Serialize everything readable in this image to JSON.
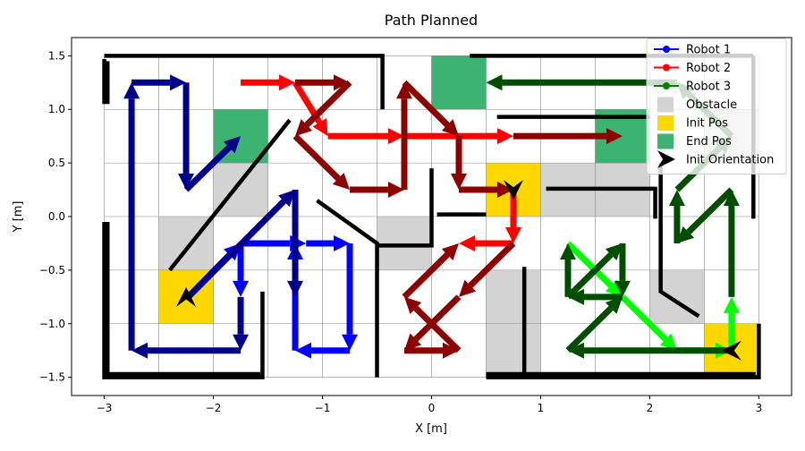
{
  "chart_data": {
    "type": "line",
    "title": "Path Planned",
    "xlabel": "X [m]",
    "ylabel": "Y [m]",
    "xlim": [
      -3.3,
      3.3
    ],
    "ylim": [
      -1.67,
      1.67
    ],
    "xticks": [
      -3,
      -2,
      -1,
      0,
      1,
      2,
      3
    ],
    "xtick_labels": [
      "−3",
      "−2",
      "−1",
      "0",
      "1",
      "2",
      "3"
    ],
    "yticks": [
      -1.5,
      -1.0,
      -0.5,
      0.0,
      0.5,
      1.0,
      1.5
    ],
    "ytick_labels": [
      "−1.5",
      "−1.0",
      "−0.5",
      "0.0",
      "0.5",
      "1.0",
      "1.5"
    ],
    "grid": true,
    "grid_cells": {
      "x0": -3,
      "x1": 3,
      "dx": 0.5,
      "y0": -1.5,
      "y1": 1.5,
      "dy": 0.5
    },
    "colors": {
      "robot1": "#0000ff",
      "robot1_dark": "#00008b",
      "robot2": "#ff0000",
      "robot2_dark": "#8b0000",
      "robot3": "#008000",
      "robot3_dark": "#004d00",
      "robot3_light": "#00ff00",
      "obstacle": "#d3d3d3",
      "init_pos": "#ffd700",
      "end_pos": "#3cb371",
      "wall": "#000000"
    },
    "cells": {
      "obstacle": [
        [
          -2,
          0
        ],
        [
          -2.5,
          -0.5
        ],
        [
          -0.5,
          -0.5
        ],
        [
          0.5,
          -1.5
        ],
        [
          0.5,
          -1
        ],
        [
          1,
          0
        ],
        [
          1.5,
          0
        ],
        [
          2,
          -1
        ],
        [
          2.5,
          0.5
        ]
      ],
      "init_pos": [
        [
          -2.5,
          -1
        ],
        [
          0.5,
          0
        ],
        [
          2.5,
          -1.5
        ]
      ],
      "end_pos": [
        [
          -2,
          0.5
        ],
        [
          0,
          1
        ],
        [
          1.5,
          0.5
        ]
      ]
    },
    "walls": [
      [
        [
          -3,
          1.5
        ],
        [
          -0.45,
          1.5
        ],
        [
          -0.45,
          1.0
        ]
      ],
      [
        [
          -2.97,
          1.45
        ],
        [
          -2.97,
          1.05
        ]
      ],
      [
        [
          -3,
          1.47
        ],
        [
          -3,
          1.05
        ]
      ],
      [
        [
          -3,
          -0.05
        ],
        [
          -3,
          -1.5
        ],
        [
          -1.55,
          -1.5
        ],
        [
          -1.55,
          -0.7
        ]
      ],
      [
        [
          -2.97,
          -0.05
        ],
        [
          -2.97,
          -1.47
        ],
        [
          -1.57,
          -1.47
        ]
      ],
      [
        [
          -2.4,
          -0.5
        ],
        [
          -1.3,
          0.9
        ]
      ],
      [
        [
          -1.05,
          0.15
        ],
        [
          -0.5,
          -0.25
        ],
        [
          -0.5,
          -1.5
        ]
      ],
      [
        [
          -0.5,
          -0.27
        ],
        [
          0,
          -0.27
        ],
        [
          0,
          0.45
        ]
      ],
      [
        [
          0.05,
          0.02
        ],
        [
          0.5,
          0.02
        ]
      ],
      [
        [
          0.35,
          1.5
        ],
        [
          2.95,
          1.5
        ]
      ],
      [
        [
          0.6,
          0.93
        ],
        [
          2,
          0.93
        ]
      ],
      [
        [
          1.05,
          0.26
        ],
        [
          2.05,
          0.26
        ],
        [
          2.05,
          -0.02
        ]
      ],
      [
        [
          2.1,
          0.5
        ],
        [
          2.1,
          -0.7
        ],
        [
          2.45,
          -0.93
        ]
      ],
      [
        [
          2.95,
          1.5
        ],
        [
          2.95,
          -0.02
        ]
      ],
      [
        [
          0.5,
          -1.5
        ],
        [
          3.0,
          -1.5
        ],
        [
          3.0,
          -1.0
        ]
      ],
      [
        [
          0.5,
          -1.47
        ],
        [
          2.97,
          -1.47
        ]
      ],
      [
        [
          0.85,
          -0.47
        ],
        [
          0.85,
          -1.5
        ]
      ]
    ],
    "series": [
      {
        "name": "Robot 1",
        "marker": "o",
        "color": "#0000ff",
        "segments": [
          {
            "tone": "mid",
            "points": [
              [
                -2.23,
                -0.75
              ],
              [
                -1.75,
                -0.25
              ],
              [
                -1.15,
                -0.25
              ],
              [
                -0.75,
                -0.25
              ],
              [
                -0.75,
                -1.25
              ],
              [
                -1.25,
                -1.25
              ],
              [
                -1.25,
                -0.25
              ]
            ]
          },
          {
            "tone": "mid",
            "points": [
              [
                -1.75,
                -0.25
              ],
              [
                -1.75,
                -0.75
              ]
            ]
          },
          {
            "tone": "dark",
            "points": [
              [
                -1.75,
                -0.75
              ],
              [
                -1.75,
                -1.25
              ],
              [
                -2.75,
                -1.25
              ],
              [
                -2.75,
                1.25
              ],
              [
                -2.25,
                1.25
              ],
              [
                -2.25,
                0.25
              ],
              [
                -1.75,
                0.75
              ]
            ]
          },
          {
            "tone": "dark",
            "points": [
              [
                -2.23,
                -0.75
              ],
              [
                -1.25,
                0.25
              ],
              [
                -1.25,
                -0.75
              ]
            ]
          }
        ]
      },
      {
        "name": "Robot 2",
        "marker": "o",
        "color": "#ff0000",
        "segments": [
          {
            "tone": "mid",
            "points": [
              [
                -1.75,
                1.25
              ],
              [
                -1.25,
                1.25
              ],
              [
                -0.95,
                0.75
              ],
              [
                -0.25,
                0.75
              ],
              [
                0.75,
                0.75
              ]
            ]
          },
          {
            "tone": "mid",
            "points": [
              [
                0.75,
                0.25
              ],
              [
                0.75,
                -0.25
              ],
              [
                0.25,
                -0.25
              ]
            ]
          },
          {
            "tone": "dark",
            "points": [
              [
                -1.25,
                1.25
              ],
              [
                -0.75,
                1.25
              ],
              [
                -1.25,
                0.75
              ],
              [
                -0.75,
                0.25
              ],
              [
                -0.25,
                0.25
              ],
              [
                -0.25,
                1.25
              ],
              [
                0.25,
                0.75
              ],
              [
                0.25,
                0.25
              ],
              [
                0.75,
                0.25
              ]
            ]
          },
          {
            "tone": "dark",
            "points": [
              [
                0.75,
                0.75
              ],
              [
                1.75,
                0.75
              ]
            ]
          },
          {
            "tone": "dark",
            "points": [
              [
                0.75,
                -0.25
              ],
              [
                0.25,
                -0.75
              ],
              [
                -0.25,
                -1.25
              ],
              [
                0.25,
                -1.25
              ],
              [
                -0.25,
                -0.75
              ],
              [
                0.25,
                -0.25
              ]
            ]
          }
        ]
      },
      {
        "name": "Robot 3",
        "marker": "o",
        "color": "#008000",
        "segments": [
          {
            "tone": "light",
            "points": [
              [
                1.25,
                -0.25
              ],
              [
                1.75,
                -0.75
              ],
              [
                2.25,
                -1.25
              ],
              [
                2.75,
                -1.25
              ],
              [
                2.75,
                -0.75
              ]
            ]
          },
          {
            "tone": "dark",
            "points": [
              [
                2.75,
                -1.25
              ],
              [
                1.25,
                -1.25
              ],
              [
                1.75,
                -0.75
              ],
              [
                1.25,
                -0.75
              ],
              [
                1.25,
                -0.25
              ]
            ]
          },
          {
            "tone": "dark",
            "points": [
              [
                1.25,
                -0.75
              ],
              [
                1.75,
                -0.25
              ],
              [
                1.75,
                -0.75
              ]
            ]
          },
          {
            "tone": "dark",
            "points": [
              [
                2.75,
                -0.75
              ],
              [
                2.75,
                0.25
              ],
              [
                2.25,
                -0.25
              ],
              [
                2.25,
                0.25
              ],
              [
                2.75,
                0.75
              ],
              [
                2.25,
                1.25
              ],
              [
                0.5,
                1.25
              ]
            ]
          }
        ]
      }
    ],
    "init_orientation": [
      [
        -2.25,
        -0.75,
        "up"
      ],
      [
        0.75,
        0.25,
        "down"
      ],
      [
        2.75,
        -1.25,
        "left"
      ]
    ],
    "legend": {
      "position": "upper right",
      "entries": [
        "Robot 1",
        "Robot 2",
        "Robot 3",
        "Obstacle",
        "Init Pos",
        "End Pos",
        "Init Orientation"
      ]
    }
  }
}
